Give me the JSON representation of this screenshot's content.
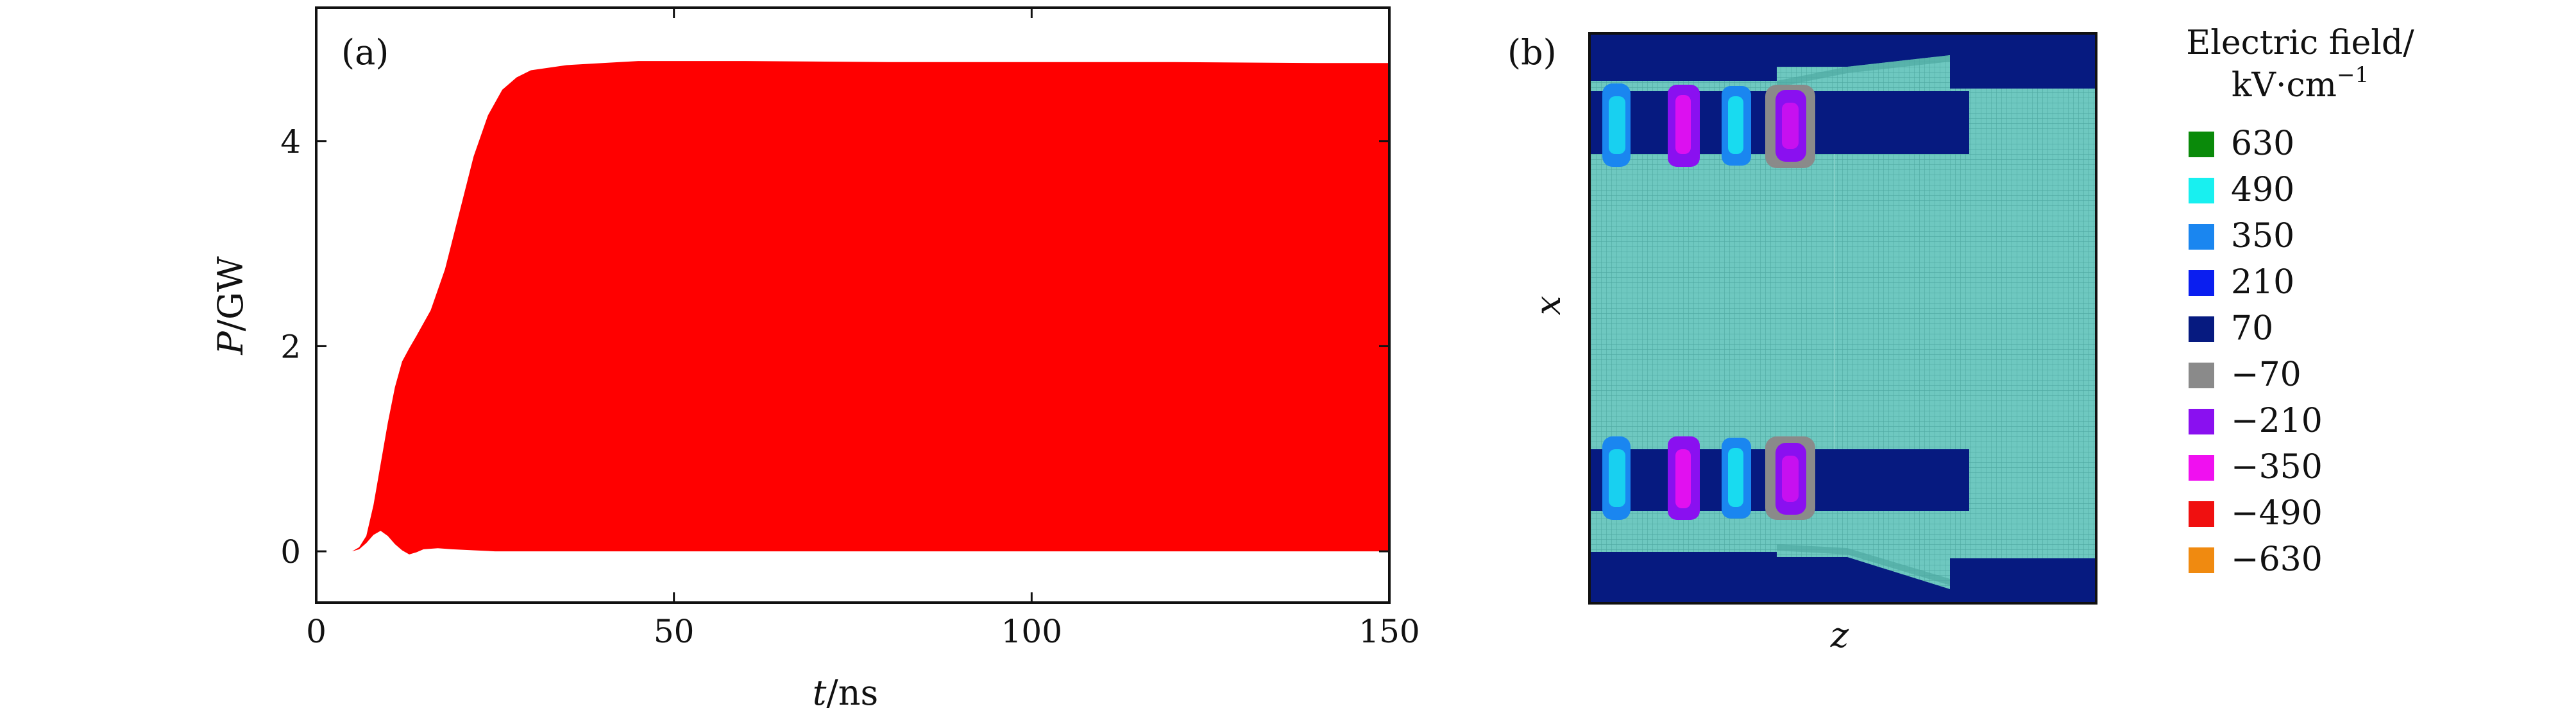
{
  "chart_data": [
    {
      "panel": "(a)",
      "type": "area",
      "xlabel_var": "t",
      "xlabel_unit": "/ns",
      "ylabel_var": "P",
      "ylabel_unit": "/GW",
      "xlim": [
        0,
        150
      ],
      "ylim": [
        -0.5,
        5.3
      ],
      "xticks": [
        0,
        50,
        100,
        150
      ],
      "yticks": [
        0,
        2,
        4
      ],
      "grid": false,
      "series": [
        {
          "color": "#ff0000",
          "upper": [
            [
              0,
              0
            ],
            [
              5,
              0
            ],
            [
              6,
              0.04
            ],
            [
              7,
              0.15
            ],
            [
              8,
              0.45
            ],
            [
              9,
              0.85
            ],
            [
              10,
              1.25
            ],
            [
              11,
              1.6
            ],
            [
              12,
              1.85
            ],
            [
              13,
              1.98
            ],
            [
              14,
              2.1
            ],
            [
              16,
              2.35
            ],
            [
              18,
              2.75
            ],
            [
              20,
              3.3
            ],
            [
              22,
              3.85
            ],
            [
              24,
              4.25
            ],
            [
              26,
              4.5
            ],
            [
              28,
              4.62
            ],
            [
              30,
              4.69
            ],
            [
              35,
              4.74
            ],
            [
              40,
              4.76
            ],
            [
              45,
              4.78
            ],
            [
              50,
              4.78
            ],
            [
              60,
              4.78
            ],
            [
              80,
              4.77
            ],
            [
              100,
              4.77
            ],
            [
              120,
              4.77
            ],
            [
              140,
              4.76
            ],
            [
              150,
              4.76
            ]
          ],
          "lower": [
            [
              0,
              0
            ],
            [
              5,
              0
            ],
            [
              6,
              0.02
            ],
            [
              7,
              0.08
            ],
            [
              8,
              0.16
            ],
            [
              9,
              0.2
            ],
            [
              10,
              0.15
            ],
            [
              11,
              0.07
            ],
            [
              12,
              0.01
            ],
            [
              13,
              -0.03
            ],
            [
              14,
              -0.01
            ],
            [
              15,
              0.02
            ],
            [
              17,
              0.03
            ],
            [
              19,
              0.02
            ],
            [
              22,
              0.01
            ],
            [
              25,
              0.0
            ],
            [
              150,
              0.0
            ]
          ]
        }
      ]
    },
    {
      "panel": "(b)",
      "type": "heatmap",
      "xlabel": "z",
      "ylabel": "x",
      "legend_title_line1": "Electric field/",
      "legend_title_line2": "kV·cm",
      "legend_title_exp": "−1",
      "legend_position": "right",
      "legend": [
        {
          "label": "630",
          "color": "#0a8a0a"
        },
        {
          "label": "490",
          "color": "#18f0f0"
        },
        {
          "label": "350",
          "color": "#1a86f0"
        },
        {
          "label": "210",
          "color": "#0a1ef0"
        },
        {
          "label": "70",
          "color": "#061a80"
        },
        {
          "label": "−70",
          "color": "#8a8a8a"
        },
        {
          "label": "−210",
          "color": "#8a10f0"
        },
        {
          "label": "−350",
          "color": "#f010f0"
        },
        {
          "label": "−490",
          "color": "#f01010"
        },
        {
          "label": "−630",
          "color": "#f08a10"
        }
      ],
      "background_color": "#6ec8c0"
    }
  ]
}
